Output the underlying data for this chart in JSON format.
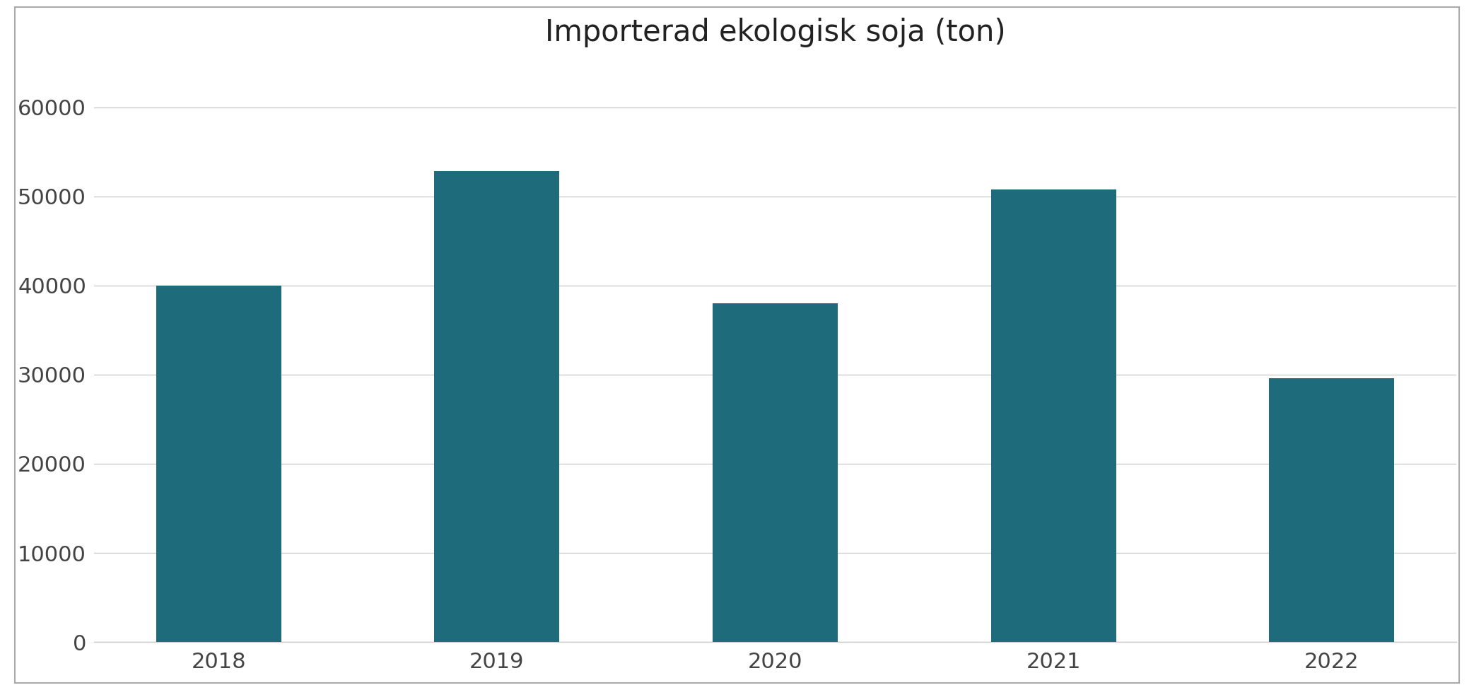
{
  "title": "Importerad ekologisk soja (ton)",
  "categories": [
    "2018",
    "2019",
    "2020",
    "2021",
    "2022"
  ],
  "values": [
    40000,
    52800,
    38000,
    50800,
    29600
  ],
  "bar_color": "#1e6b7b",
  "ylim": [
    0,
    65000
  ],
  "yticks": [
    0,
    10000,
    20000,
    30000,
    40000,
    50000,
    60000
  ],
  "title_fontsize": 30,
  "tick_fontsize": 22,
  "background_color": "#ffffff",
  "figure_color": "#ffffff",
  "bar_width": 0.45,
  "grid_color": "#cccccc",
  "border_color": "#aaaaaa"
}
